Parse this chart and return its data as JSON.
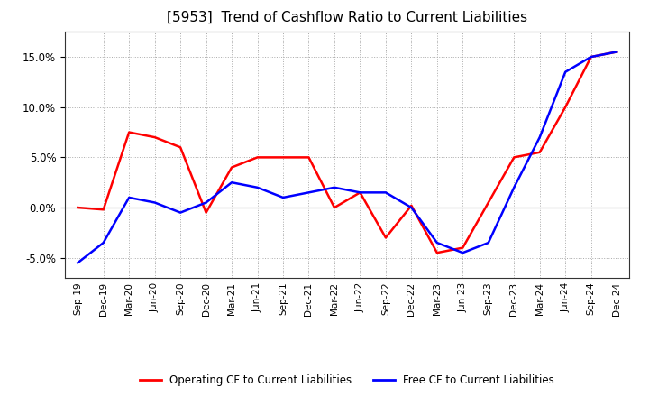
{
  "title": "[5953]  Trend of Cashflow Ratio to Current Liabilities",
  "x_labels": [
    "Sep-19",
    "Dec-19",
    "Mar-20",
    "Jun-20",
    "Sep-20",
    "Dec-20",
    "Mar-21",
    "Jun-21",
    "Sep-21",
    "Dec-21",
    "Mar-22",
    "Jun-22",
    "Sep-22",
    "Dec-22",
    "Mar-23",
    "Jun-23",
    "Sep-23",
    "Dec-23",
    "Mar-24",
    "Jun-24",
    "Sep-24",
    "Dec-24"
  ],
  "operating_cf": [
    0.0,
    -0.2,
    7.5,
    7.0,
    6.0,
    -0.5,
    4.0,
    5.0,
    5.0,
    5.0,
    0.0,
    1.5,
    -3.0,
    0.2,
    -4.5,
    -4.0,
    0.5,
    5.0,
    5.5,
    10.0,
    15.0,
    15.5
  ],
  "free_cf": [
    -5.5,
    -3.5,
    1.0,
    0.5,
    -0.5,
    0.5,
    2.5,
    2.0,
    1.0,
    1.5,
    2.0,
    1.5,
    1.5,
    0.0,
    -3.5,
    -4.5,
    -3.5,
    2.0,
    7.0,
    13.5,
    15.0,
    15.5
  ],
  "operating_color": "#ff0000",
  "free_color": "#0000ff",
  "ylim": [
    -7.0,
    17.5
  ],
  "yticks": [
    -5.0,
    0.0,
    5.0,
    10.0,
    15.0
  ],
  "background_color": "#ffffff",
  "grid_color": "#aaaaaa",
  "title_fontsize": 11,
  "legend_labels": [
    "Operating CF to Current Liabilities",
    "Free CF to Current Liabilities"
  ]
}
